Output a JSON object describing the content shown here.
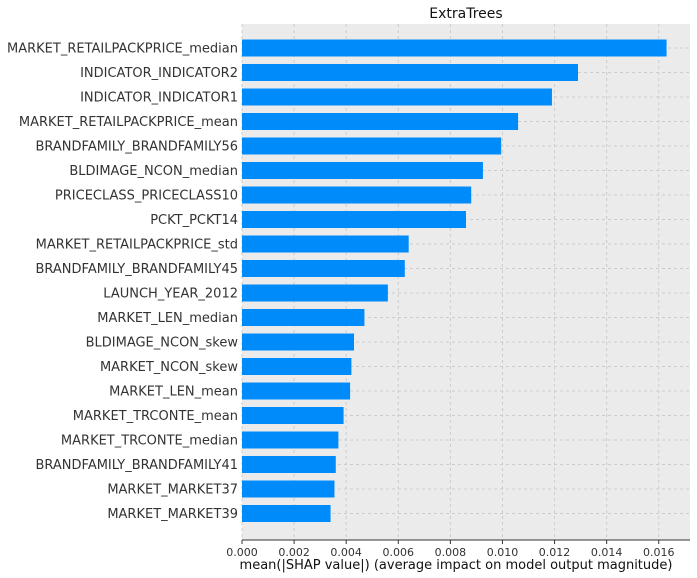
{
  "chart_data": {
    "type": "bar",
    "orientation": "horizontal",
    "title": "ExtraTrees",
    "xlabel": "mean(|SHAP value|) (average impact on model output magnitude)",
    "ylabel": "",
    "categories": [
      "MARKET_RETAILPACKPRICE_median",
      "INDICATOR_INDICATOR2",
      "INDICATOR_INDICATOR1",
      "MARKET_RETAILPACKPRICE_mean",
      "BRANDFAMILY_BRANDFAMILY56",
      "BLDIMAGE_NCON_median",
      "PRICECLASS_PRICECLASS10",
      "PCKT_PCKT14",
      "MARKET_RETAILPACKPRICE_std",
      "BRANDFAMILY_BRANDFAMILY45",
      "LAUNCH_YEAR_2012",
      "MARKET_LEN_median",
      "BLDIMAGE_NCON_skew",
      "MARKET_NCON_skew",
      "MARKET_LEN_mean",
      "MARKET_TRCONTE_mean",
      "MARKET_TRCONTE_median",
      "BRANDFAMILY_BRANDFAMILY41",
      "MARKET_MARKET37",
      "MARKET_MARKET39"
    ],
    "values": [
      0.0163,
      0.0129,
      0.0119,
      0.0106,
      0.00995,
      0.00925,
      0.0088,
      0.0086,
      0.0064,
      0.00625,
      0.0056,
      0.0047,
      0.0043,
      0.0042,
      0.00415,
      0.0039,
      0.0037,
      0.0036,
      0.00355,
      0.0034
    ],
    "xlim": [
      0,
      0.0172
    ],
    "xticks": [
      "0.000",
      "0.002",
      "0.004",
      "0.006",
      "0.008",
      "0.010",
      "0.012",
      "0.014",
      "0.016"
    ],
    "bar_color": "#008bfb",
    "background_color": "#ebebeb",
    "grid": true
  }
}
